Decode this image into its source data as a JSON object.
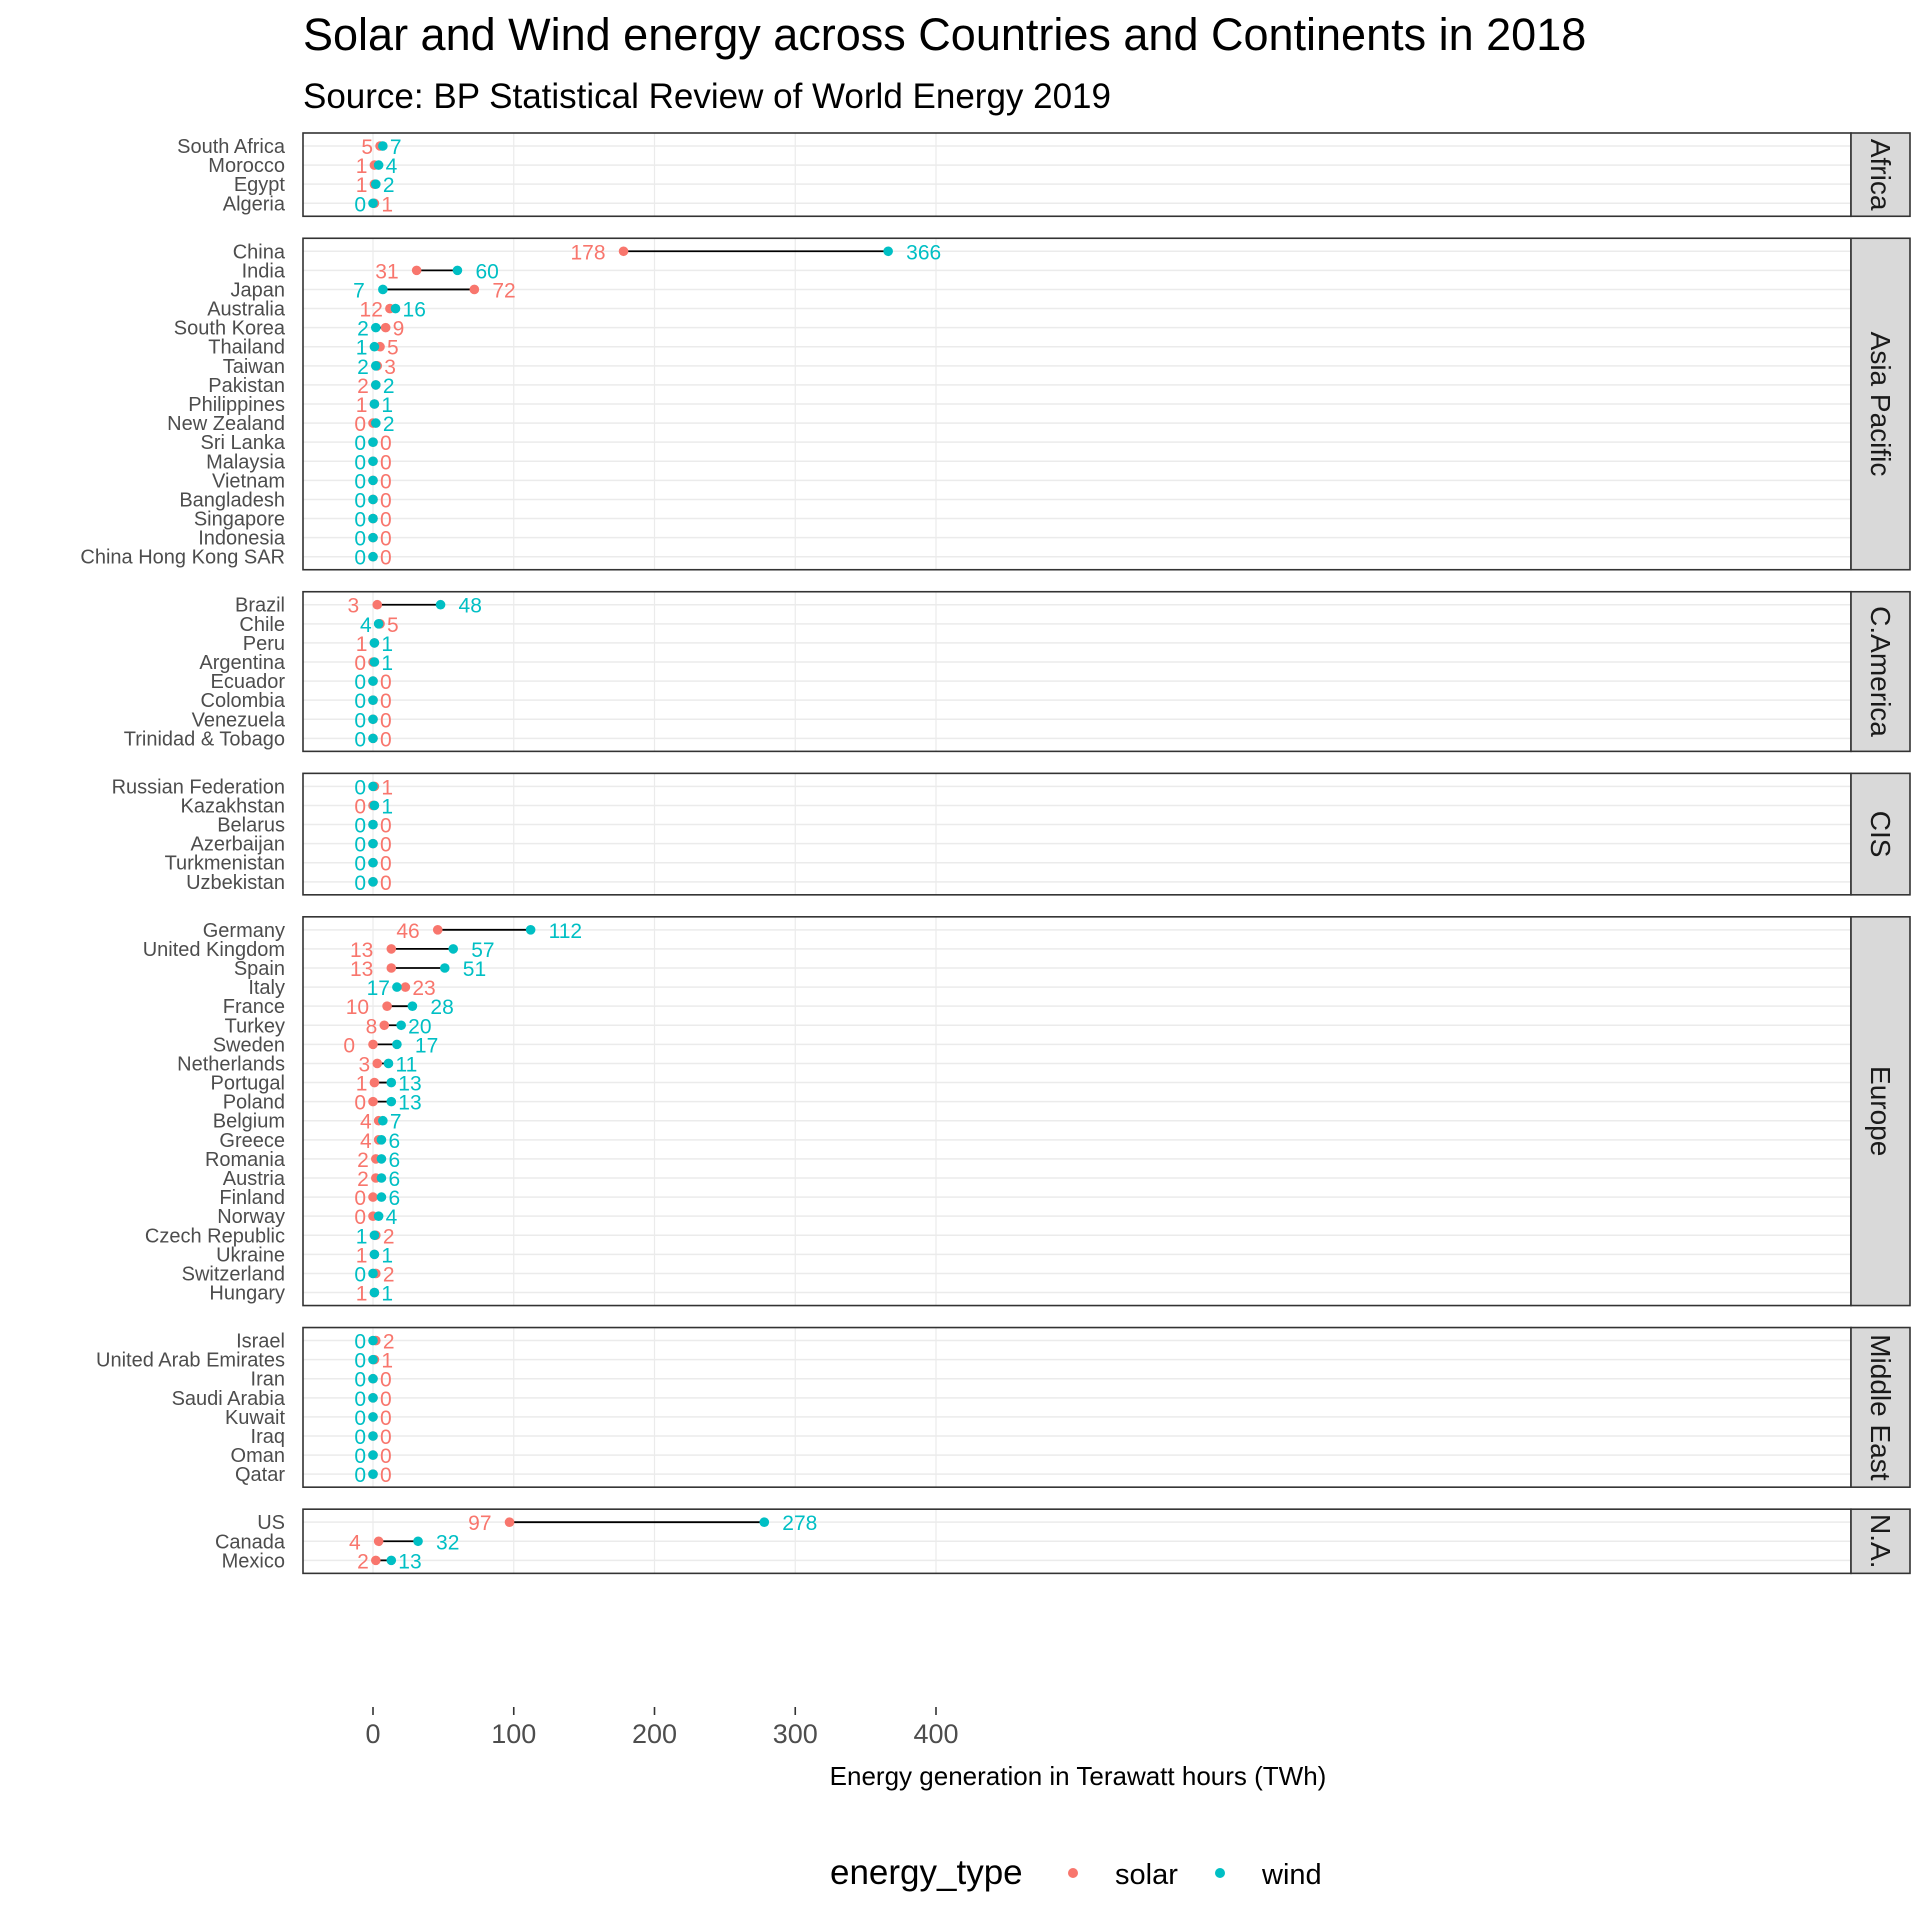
{
  "title": "Solar and Wind energy across Countries and Continents in 2018",
  "subtitle": "Source: BP Statistical Review of World Energy 2019",
  "colors": {
    "solar": "#F8766D",
    "wind": "#00BFC4",
    "segment": "#000000"
  },
  "legend": {
    "title": "energy_type",
    "items": [
      "solar",
      "wind"
    ]
  },
  "chart_data": {
    "type": "dumbbell",
    "xlabel": "Energy generation in Terawatt hours (TWh)",
    "xlim": [
      -20,
      422
    ],
    "x_ticks": [
      0,
      100,
      200,
      300,
      400
    ],
    "facets": [
      {
        "name": "Africa",
        "countries": [
          {
            "country": "South Africa",
            "solar": 5,
            "wind": 7
          },
          {
            "country": "Morocco",
            "solar": 1,
            "wind": 4
          },
          {
            "country": "Egypt",
            "solar": 1,
            "wind": 2
          },
          {
            "country": "Algeria",
            "solar": 1,
            "wind": 0
          }
        ]
      },
      {
        "name": "Asia Pacific",
        "countries": [
          {
            "country": "China",
            "solar": 178,
            "wind": 366
          },
          {
            "country": "India",
            "solar": 31,
            "wind": 60
          },
          {
            "country": "Japan",
            "solar": 72,
            "wind": 7
          },
          {
            "country": "Australia",
            "solar": 12,
            "wind": 16
          },
          {
            "country": "South Korea",
            "solar": 9,
            "wind": 2
          },
          {
            "country": "Thailand",
            "solar": 5,
            "wind": 1
          },
          {
            "country": "Taiwan",
            "solar": 3,
            "wind": 2
          },
          {
            "country": "Pakistan",
            "solar": 2,
            "wind": 2
          },
          {
            "country": "Philippines",
            "solar": 1,
            "wind": 1
          },
          {
            "country": "New Zealand",
            "solar": 0,
            "wind": 2
          },
          {
            "country": "Sri Lanka",
            "solar": 0,
            "wind": 0
          },
          {
            "country": "Malaysia",
            "solar": 0,
            "wind": 0
          },
          {
            "country": "Vietnam",
            "solar": 0,
            "wind": 0
          },
          {
            "country": "Bangladesh",
            "solar": 0,
            "wind": 0
          },
          {
            "country": "Singapore",
            "solar": 0,
            "wind": 0
          },
          {
            "country": "Indonesia",
            "solar": 0,
            "wind": 0
          },
          {
            "country": "China Hong Kong SAR",
            "solar": 0,
            "wind": 0
          }
        ]
      },
      {
        "name": "C.America",
        "countries": [
          {
            "country": "Brazil",
            "solar": 3,
            "wind": 48
          },
          {
            "country": "Chile",
            "solar": 5,
            "wind": 4
          },
          {
            "country": "Peru",
            "solar": 1,
            "wind": 1
          },
          {
            "country": "Argentina",
            "solar": 0,
            "wind": 1
          },
          {
            "country": "Ecuador",
            "solar": 0,
            "wind": 0
          },
          {
            "country": "Colombia",
            "solar": 0,
            "wind": 0
          },
          {
            "country": "Venezuela",
            "solar": 0,
            "wind": 0
          },
          {
            "country": "Trinidad & Tobago",
            "solar": 0,
            "wind": 0
          }
        ]
      },
      {
        "name": "CIS",
        "countries": [
          {
            "country": "Russian Federation",
            "solar": 1,
            "wind": 0
          },
          {
            "country": "Kazakhstan",
            "solar": 0,
            "wind": 1
          },
          {
            "country": "Belarus",
            "solar": 0,
            "wind": 0
          },
          {
            "country": "Azerbaijan",
            "solar": 0,
            "wind": 0
          },
          {
            "country": "Turkmenistan",
            "solar": 0,
            "wind": 0
          },
          {
            "country": "Uzbekistan",
            "solar": 0,
            "wind": 0
          }
        ]
      },
      {
        "name": "Europe",
        "countries": [
          {
            "country": "Germany",
            "solar": 46,
            "wind": 112
          },
          {
            "country": "United Kingdom",
            "solar": 13,
            "wind": 57
          },
          {
            "country": "Spain",
            "solar": 13,
            "wind": 51
          },
          {
            "country": "Italy",
            "solar": 23,
            "wind": 17
          },
          {
            "country": "France",
            "solar": 10,
            "wind": 28
          },
          {
            "country": "Turkey",
            "solar": 8,
            "wind": 20
          },
          {
            "country": "Sweden",
            "solar": 0,
            "wind": 17
          },
          {
            "country": "Netherlands",
            "solar": 3,
            "wind": 11
          },
          {
            "country": "Portugal",
            "solar": 1,
            "wind": 13
          },
          {
            "country": "Poland",
            "solar": 0,
            "wind": 13
          },
          {
            "country": "Belgium",
            "solar": 4,
            "wind": 7
          },
          {
            "country": "Greece",
            "solar": 4,
            "wind": 6
          },
          {
            "country": "Romania",
            "solar": 2,
            "wind": 6
          },
          {
            "country": "Austria",
            "solar": 2,
            "wind": 6
          },
          {
            "country": "Finland",
            "solar": 0,
            "wind": 6
          },
          {
            "country": "Norway",
            "solar": 0,
            "wind": 4
          },
          {
            "country": "Czech Republic",
            "solar": 2,
            "wind": 1
          },
          {
            "country": "Ukraine",
            "solar": 1,
            "wind": 1
          },
          {
            "country": "Switzerland",
            "solar": 2,
            "wind": 0
          },
          {
            "country": "Hungary",
            "solar": 1,
            "wind": 1
          }
        ]
      },
      {
        "name": "Middle East",
        "countries": [
          {
            "country": "Israel",
            "solar": 2,
            "wind": 0
          },
          {
            "country": "United Arab Emirates",
            "solar": 1,
            "wind": 0
          },
          {
            "country": "Iran",
            "solar": 0,
            "wind": 0
          },
          {
            "country": "Saudi Arabia",
            "solar": 0,
            "wind": 0
          },
          {
            "country": "Kuwait",
            "solar": 0,
            "wind": 0
          },
          {
            "country": "Iraq",
            "solar": 0,
            "wind": 0
          },
          {
            "country": "Oman",
            "solar": 0,
            "wind": 0
          },
          {
            "country": "Qatar",
            "solar": 0,
            "wind": 0
          }
        ]
      },
      {
        "name": "N.A.",
        "countries": [
          {
            "country": "US",
            "solar": 97,
            "wind": 278
          },
          {
            "country": "Canada",
            "solar": 4,
            "wind": 32
          },
          {
            "country": "Mexico",
            "solar": 2,
            "wind": 13
          }
        ]
      }
    ]
  }
}
